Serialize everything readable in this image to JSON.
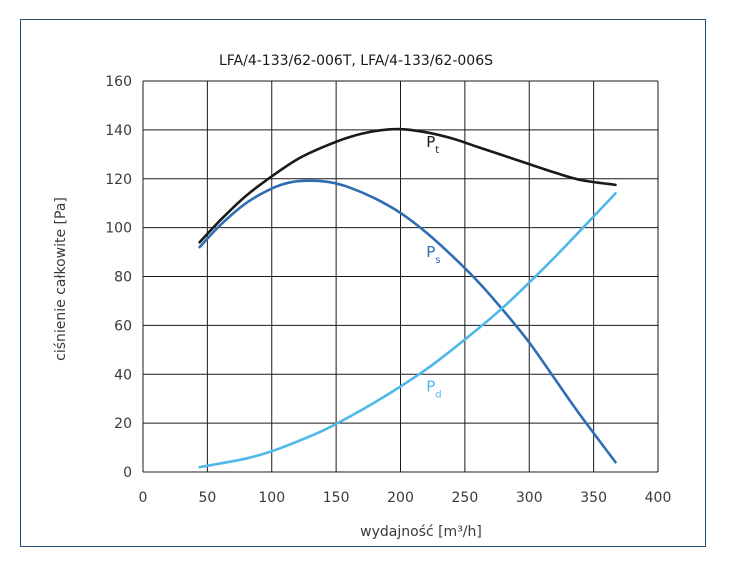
{
  "chart_data": {
    "type": "line",
    "title": "LFA/4-133/62-006T, LFA/4-133/62-006S",
    "xlabel": "wydajność [m³/h]",
    "ylabel": "ciśnienie całkowite [Pa]",
    "xlim": [
      0,
      400
    ],
    "ylim": [
      0,
      160
    ],
    "xticks": [
      0,
      50,
      100,
      150,
      200,
      250,
      300,
      350,
      400
    ],
    "yticks": [
      0,
      20,
      40,
      60,
      80,
      100,
      120,
      140,
      160
    ],
    "grid": true,
    "legend": "none",
    "series": [
      {
        "name": "Pt",
        "main": "P",
        "sub": "t",
        "color": "#1a1a1a",
        "x": [
          44,
          60,
          80,
          100,
          120,
          140,
          160,
          180,
          200,
          220,
          240,
          260,
          280,
          300,
          320,
          340,
          367
        ],
        "y": [
          94,
          103,
          113,
          121,
          128,
          133,
          137,
          139.5,
          140.3,
          139,
          136.5,
          133,
          129.5,
          126,
          122.5,
          119.5,
          117.5
        ]
      },
      {
        "name": "Ps",
        "main": "P",
        "sub": "s",
        "color": "#2f6db3",
        "x": [
          44,
          60,
          80,
          100,
          115,
          130,
          145,
          160,
          180,
          200,
          220,
          240,
          260,
          280,
          300,
          320,
          340,
          367
        ],
        "y": [
          92,
          101,
          110,
          116,
          118.6,
          119.2,
          118.6,
          116.5,
          112,
          106,
          98,
          88.5,
          78,
          66,
          53,
          38,
          23,
          4
        ]
      },
      {
        "name": "Pd",
        "main": "P",
        "sub": "d",
        "color": "#4fb8e8",
        "x": [
          44,
          60,
          80,
          100,
          120,
          140,
          160,
          180,
          200,
          220,
          240,
          260,
          280,
          300,
          320,
          340,
          367
        ],
        "y": [
          2,
          3.5,
          5.5,
          8.5,
          12.5,
          17,
          22.5,
          28.5,
          35,
          42,
          50,
          58.5,
          67.5,
          77.5,
          88,
          99,
          114
        ]
      }
    ],
    "annotations": [
      {
        "series": "Pt",
        "x": 220,
        "y": 133
      },
      {
        "series": "Ps",
        "x": 220,
        "y": 88
      },
      {
        "series": "Pd",
        "x": 220,
        "y": 33
      }
    ]
  }
}
